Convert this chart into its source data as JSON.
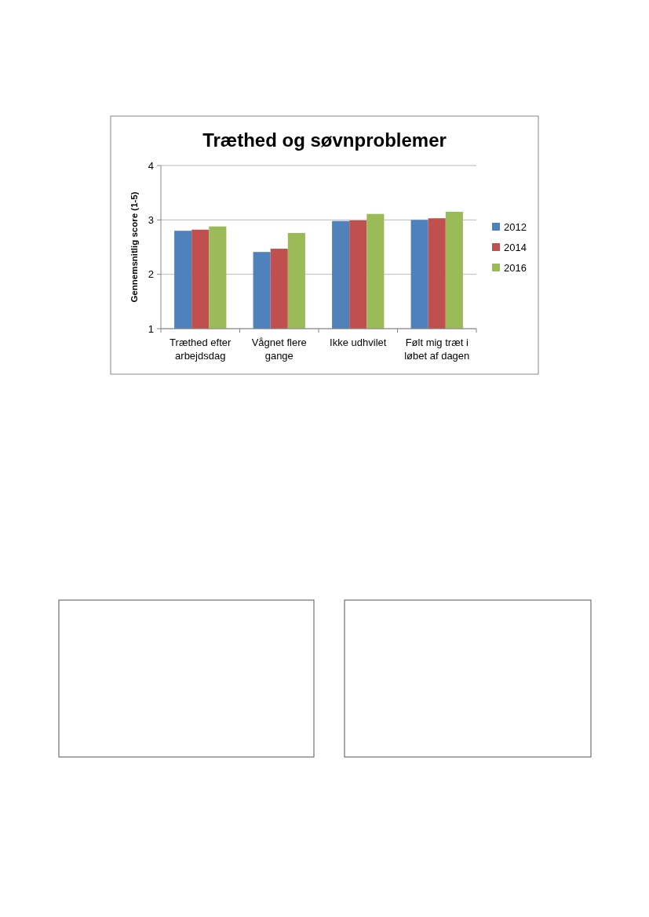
{
  "chart_data": {
    "type": "bar",
    "title": "Træthed og søvnproblemer",
    "ylabel": "Gennemsnitlig score (1-5)",
    "categories": [
      "Træthed efter arbejdsdag",
      "Vågnet flere gange",
      "Ikke udhvilet",
      "Følt mig træt i løbet af dagen"
    ],
    "series": [
      {
        "name": "2012",
        "color": "#4f81bd",
        "values": [
          2.8,
          2.41,
          2.98,
          3.0
        ]
      },
      {
        "name": "2014",
        "color": "#c0504d",
        "values": [
          2.82,
          2.47,
          2.99,
          3.03
        ]
      },
      {
        "name": "2016",
        "color": "#9bbb59",
        "values": [
          2.88,
          2.76,
          3.11,
          3.15
        ]
      }
    ],
    "ylim": [
      1,
      4
    ],
    "yticks": [
      1,
      2,
      3,
      4
    ],
    "grid": "y",
    "legend": "right"
  }
}
